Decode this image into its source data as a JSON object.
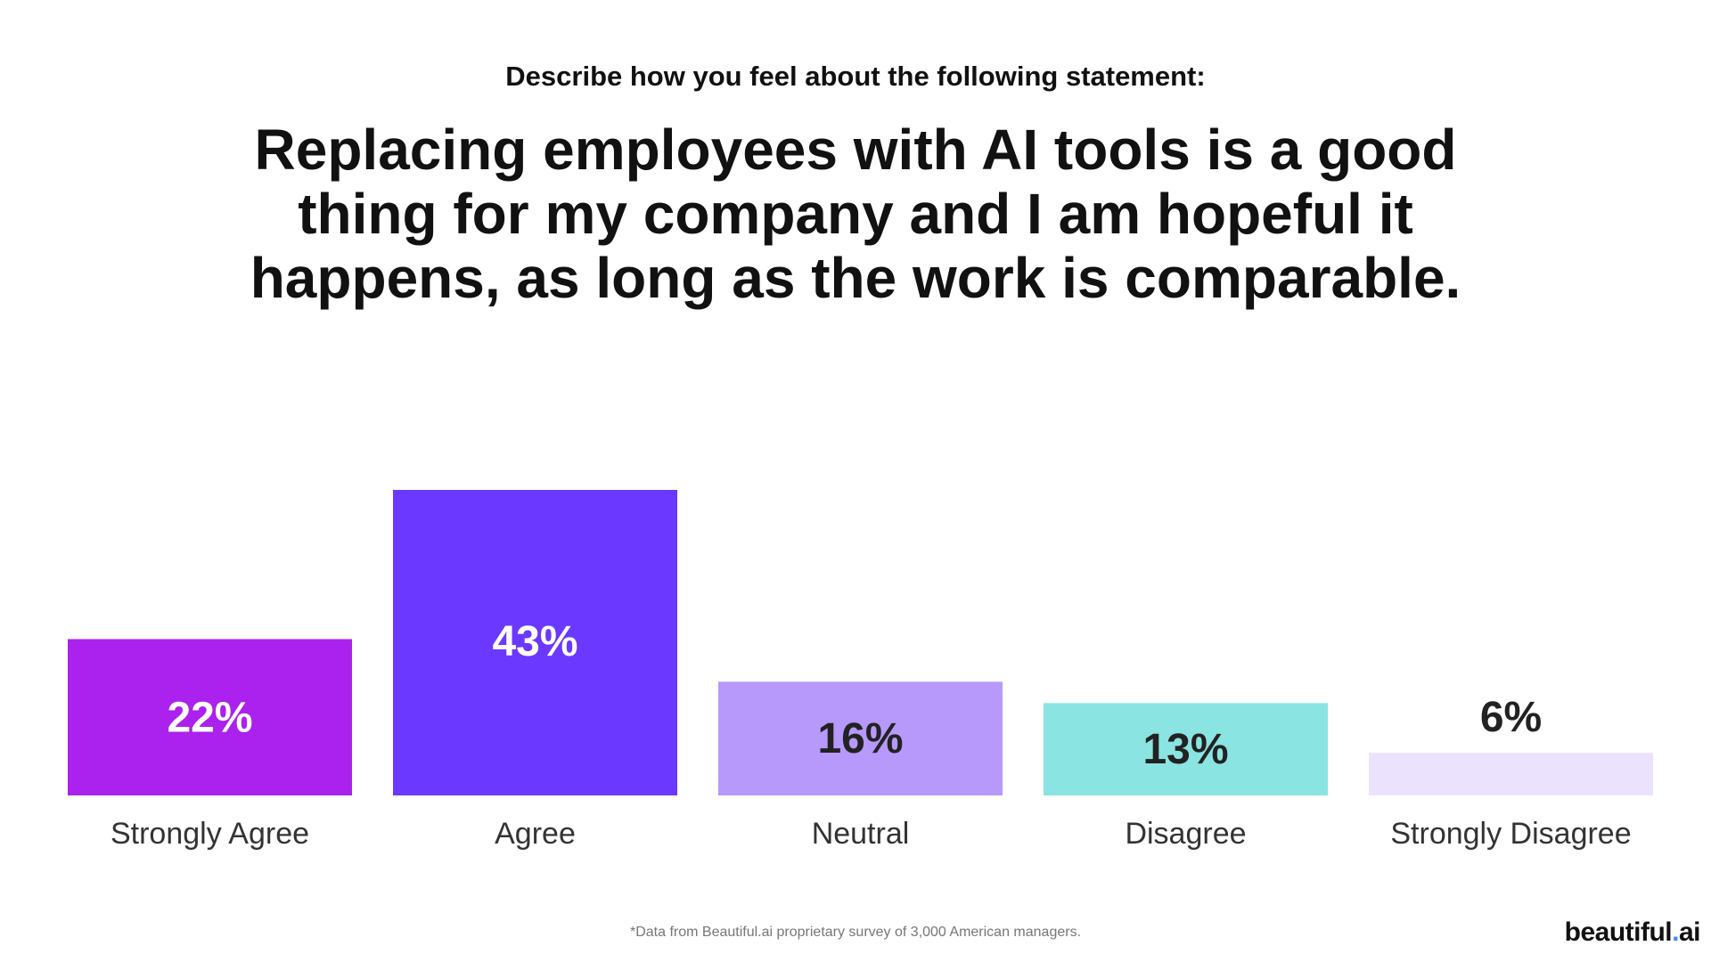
{
  "header": {
    "kicker": "Describe how you feel about the following statement:",
    "headline": "Replacing employees with AI tools is a good thing for my company and I am hopeful it happens, as long as the work is comparable."
  },
  "chart_data": {
    "type": "bar",
    "categories": [
      "Strongly Agree",
      "Agree",
      "Neutral",
      "Disagree",
      "Strongly Disagree"
    ],
    "values": [
      22,
      43,
      16,
      13,
      6
    ],
    "labels": [
      "22%",
      "43%",
      "16%",
      "13%",
      "6%"
    ],
    "colors": [
      "#ab21ee",
      "#6b38ff",
      "#b798fb",
      "#8ae4e1",
      "#ebe2fd"
    ],
    "label_colors": [
      "#ffffff",
      "#ffffff",
      "#222222",
      "#222222",
      "#222222"
    ],
    "ylim": [
      0,
      43
    ],
    "grid": false,
    "legend": "none"
  },
  "footer": {
    "footnote": "*Data from Beautiful.ai proprietary survey of 3,000 American managers.",
    "brand_main": "beautiful",
    "brand_dot": ".",
    "brand_tail": "ai"
  }
}
